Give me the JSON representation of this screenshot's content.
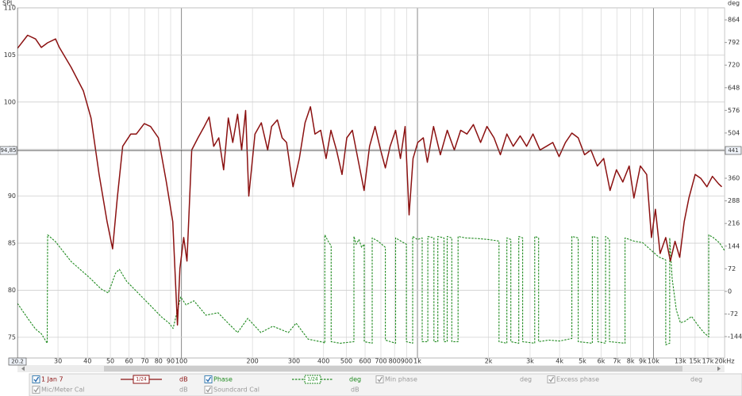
{
  "chart_data": {
    "type": "line",
    "ylabel": "SPL",
    "y2label": "deg",
    "xscale": "log",
    "grid": true,
    "xlim": [
      20.2,
      20000
    ],
    "ylim": [
      72.8,
      110
    ],
    "y2lim": [
      -212,
      902
    ],
    "xticks": [
      30,
      40,
      50,
      60,
      70,
      80,
      90,
      100,
      200,
      300,
      400,
      500,
      600,
      700,
      800,
      900,
      {
        "value": 1000,
        "label": "1k"
      },
      {
        "value": 2000,
        "label": "2k"
      },
      {
        "value": 3000,
        "label": "3k"
      },
      {
        "value": 4000,
        "label": "4k"
      },
      {
        "value": 5000,
        "label": "5k"
      },
      {
        "value": 6000,
        "label": "6k"
      },
      {
        "value": 7000,
        "label": "7k"
      },
      {
        "value": 8000,
        "label": "8k"
      },
      {
        "value": 9000,
        "label": "9k"
      },
      {
        "value": 10000,
        "label": "10k"
      },
      {
        "value": 13000,
        "label": "13k"
      },
      {
        "value": 15000,
        "label": "15k"
      },
      {
        "value": 17000,
        "label": "17k"
      },
      {
        "value": 20000,
        "label": "20kHz"
      }
    ],
    "yticks": [
      75,
      80,
      85,
      90,
      95,
      100,
      105,
      110
    ],
    "y2ticks": [
      864,
      792,
      720,
      648,
      576,
      504,
      360,
      288,
      216,
      144,
      72,
      0,
      -72,
      -144
    ],
    "cursor": {
      "x": 20.2,
      "y": {
        "value": 94.85,
        "label": "94,85"
      },
      "y2": 441
    },
    "series": [
      {
        "name": "1 Jan 7",
        "color": "#8b1111",
        "unit": "dB",
        "smoothing": "1/24",
        "visible": true,
        "axis": "y",
        "dashed": false,
        "x": [
          20.2,
          22.3,
          24.1,
          25.5,
          27.1,
          29.3,
          30.4,
          34.1,
          38.4,
          41.4,
          44.8,
          48.4,
          51.1,
          53.5,
          56.4,
          61.0,
          64.4,
          69.6,
          74.0,
          79.9,
          86.3,
          91.9,
          96.2,
          98.5,
          102.3,
          105.6,
          110.6,
          117.6,
          125,
          131,
          137,
          144,
          151,
          158,
          165,
          173,
          180,
          187,
          193,
          205,
          218,
          232,
          241,
          255,
          267,
          279,
          297,
          316,
          334,
          352,
          368,
          389,
          410,
          430,
          454,
          479,
          502,
          530,
          559,
          594,
          627,
          661,
          698,
          731,
          766,
          808,
          847,
          887,
          922,
          958,
          1003,
          1059,
          1101,
          1170,
          1250,
          1337,
          1433,
          1524,
          1620,
          1726,
          1852,
          1970,
          2110,
          2245,
          2393,
          2545,
          2725,
          2900,
          3085,
          3305,
          3520,
          3745,
          3980,
          4236,
          4508,
          4797,
          5105,
          5432,
          5781,
          6151,
          6546,
          6966,
          7413,
          7888,
          8264,
          8794,
          9358,
          9801,
          10190,
          10670,
          11270,
          11790,
          12340,
          12910,
          13500,
          14130,
          15020,
          15850,
          16840,
          17760,
          18880,
          19460
        ],
        "values": [
          105.7,
          107.1,
          106.7,
          105.8,
          106.3,
          106.7,
          105.8,
          103.7,
          101.2,
          98.3,
          92.3,
          87.3,
          84.4,
          89.8,
          95.3,
          96.6,
          96.6,
          97.7,
          97.4,
          96.2,
          91.5,
          87.3,
          76.3,
          82.3,
          85.6,
          83.1,
          94.9,
          96.2,
          97.4,
          98.4,
          95.3,
          96.2,
          92.8,
          98.3,
          95.7,
          98.7,
          94.9,
          99.1,
          90.0,
          96.6,
          97.8,
          94.9,
          97.4,
          98.1,
          96.2,
          95.7,
          91.0,
          94.0,
          97.8,
          99.5,
          96.6,
          97.0,
          94.0,
          97.0,
          94.9,
          92.3,
          96.2,
          97.0,
          94.0,
          90.6,
          95.3,
          97.4,
          94.9,
          93.0,
          95.3,
          97.0,
          94.0,
          97.4,
          88.0,
          94.0,
          95.7,
          96.2,
          93.6,
          97.4,
          94.4,
          97.0,
          94.9,
          97.0,
          96.6,
          97.6,
          95.7,
          97.4,
          96.2,
          94.4,
          96.6,
          95.3,
          96.4,
          95.3,
          96.6,
          94.9,
          95.3,
          95.7,
          94.2,
          95.7,
          96.7,
          96.2,
          94.4,
          94.9,
          93.2,
          94.0,
          90.6,
          92.8,
          91.5,
          93.2,
          89.8,
          93.2,
          92.3,
          85.6,
          88.6,
          83.9,
          85.6,
          83.1,
          85.2,
          83.5,
          87.3,
          89.8,
          92.3,
          91.9,
          91.0,
          92.1,
          91.3,
          91.0
        ]
      },
      {
        "name": "Phase",
        "color": "#1f8a1f",
        "unit": "deg",
        "smoothing": "1/24",
        "visible": true,
        "axis": "y2",
        "dashed": true,
        "x": [
          20.2,
          21.5,
          22.8,
          24.1,
          25.5,
          27.0,
          27.1,
          29.3,
          34.1,
          40.6,
          45.6,
          49.0,
          52.6,
          54.6,
          58.6,
          65.5,
          73.4,
          82.2,
          88.7,
          92.2,
          99.3,
          104.6,
          113,
          127,
          143,
          160,
          173,
          191,
          217,
          244,
          284,
          306,
          344,
          400,
          405,
          405,
          418,
          431,
          431,
          470,
          538,
          538,
          550,
          565,
          580,
          595,
          595,
          643,
          643,
          680,
          731,
          731,
          808,
          808,
          850,
          898,
          898,
          954,
          954,
          1000,
          1047,
          1047,
          1106,
          1106,
          1174,
          1174,
          1220,
          1220,
          1296,
          1296,
          1336,
          1336,
          1398,
          1398,
          1486,
          1486,
          1600,
          1800,
          2000,
          2215,
          2215,
          2393,
          2393,
          2486,
          2486,
          2686,
          2686,
          2790,
          2790,
          3138,
          3138,
          3261,
          3261,
          3600,
          4000,
          4508,
          4508,
          4797,
          4797,
          5505,
          5505,
          5807,
          5807,
          6266,
          6266,
          6511,
          6511,
          7577,
          7577,
          8264,
          9000,
          9800,
          10500,
          11270,
          11270,
          11710,
          11710,
          12000,
          12500,
          13000,
          13600,
          14500,
          15500,
          16300,
          17140,
          17140,
          18000,
          19000,
          20000
        ],
        "values": [
          -38,
          -68,
          -95,
          -120,
          -135,
          -165,
          180,
          158,
          95,
          45,
          8,
          -5,
          58,
          70,
          32,
          -5,
          -43,
          -81,
          -101,
          -118,
          -18,
          -43,
          -30,
          -76,
          -68,
          -106,
          -131,
          -86,
          -131,
          -111,
          -131,
          -101,
          -152,
          -162,
          -165,
          180,
          160,
          145,
          -160,
          -165,
          -160,
          175,
          150,
          165,
          140,
          150,
          -160,
          -165,
          170,
          160,
          140,
          -155,
          -165,
          170,
          160,
          150,
          -160,
          -165,
          175,
          165,
          170,
          -160,
          -160,
          175,
          170,
          -160,
          -160,
          175,
          170,
          -160,
          -160,
          175,
          170,
          -160,
          -160,
          175,
          170,
          168,
          165,
          160,
          -160,
          -165,
          170,
          165,
          -160,
          -165,
          175,
          170,
          -160,
          -165,
          175,
          170,
          -160,
          -155,
          -158,
          -150,
          175,
          170,
          -160,
          -165,
          175,
          170,
          -160,
          -165,
          175,
          165,
          -160,
          -165,
          170,
          160,
          155,
          130,
          110,
          100,
          -170,
          -165,
          170,
          40,
          -60,
          -100,
          -95,
          -80,
          -110,
          -130,
          -145,
          180,
          170,
          155,
          130
        ]
      }
    ],
    "other_traces": [
      {
        "name": "Min phase",
        "unit": "deg",
        "checked": true
      },
      {
        "name": "Excess phase",
        "unit": "deg",
        "checked": true
      },
      {
        "name": "Mic/Meter Cal",
        "unit": "dB",
        "checked": true
      },
      {
        "name": "Soundcard Cal",
        "unit": "dB",
        "checked": true
      }
    ]
  }
}
